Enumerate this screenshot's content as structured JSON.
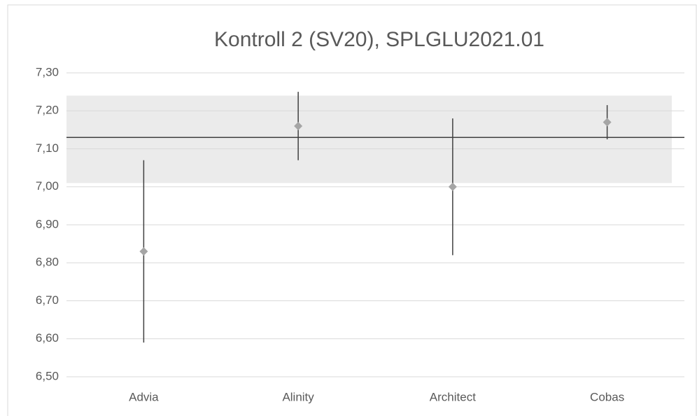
{
  "chart_data": {
    "type": "dot",
    "title": "Kontroll 2 (SV20), SPLGLU2021.01",
    "categories": [
      "Advia",
      "Alinity",
      "Architect",
      "Cobas"
    ],
    "values": [
      6.83,
      7.16,
      7.0,
      7.17
    ],
    "errors": [
      0.24,
      0.09,
      0.18,
      0.045
    ],
    "reference_line": 7.13,
    "band": [
      7.01,
      7.24
    ],
    "color": "#a5a5a5",
    "error_color": "#404040",
    "reference_color": "#404040",
    "band_color": "#ebebeb",
    "ylim": [
      6.5,
      7.3
    ],
    "yticks": [
      {
        "value": 6.5,
        "label": "6,50"
      },
      {
        "value": 6.6,
        "label": "6,60"
      },
      {
        "value": 6.7,
        "label": "6,70"
      },
      {
        "value": 6.8,
        "label": "6,80"
      },
      {
        "value": 6.9,
        "label": "6,90"
      },
      {
        "value": 7.0,
        "label": "7,00"
      },
      {
        "value": 7.1,
        "label": "7,10"
      },
      {
        "value": 7.2,
        "label": "7,20"
      },
      {
        "value": 7.3,
        "label": "7,30"
      }
    ],
    "grid": true
  }
}
